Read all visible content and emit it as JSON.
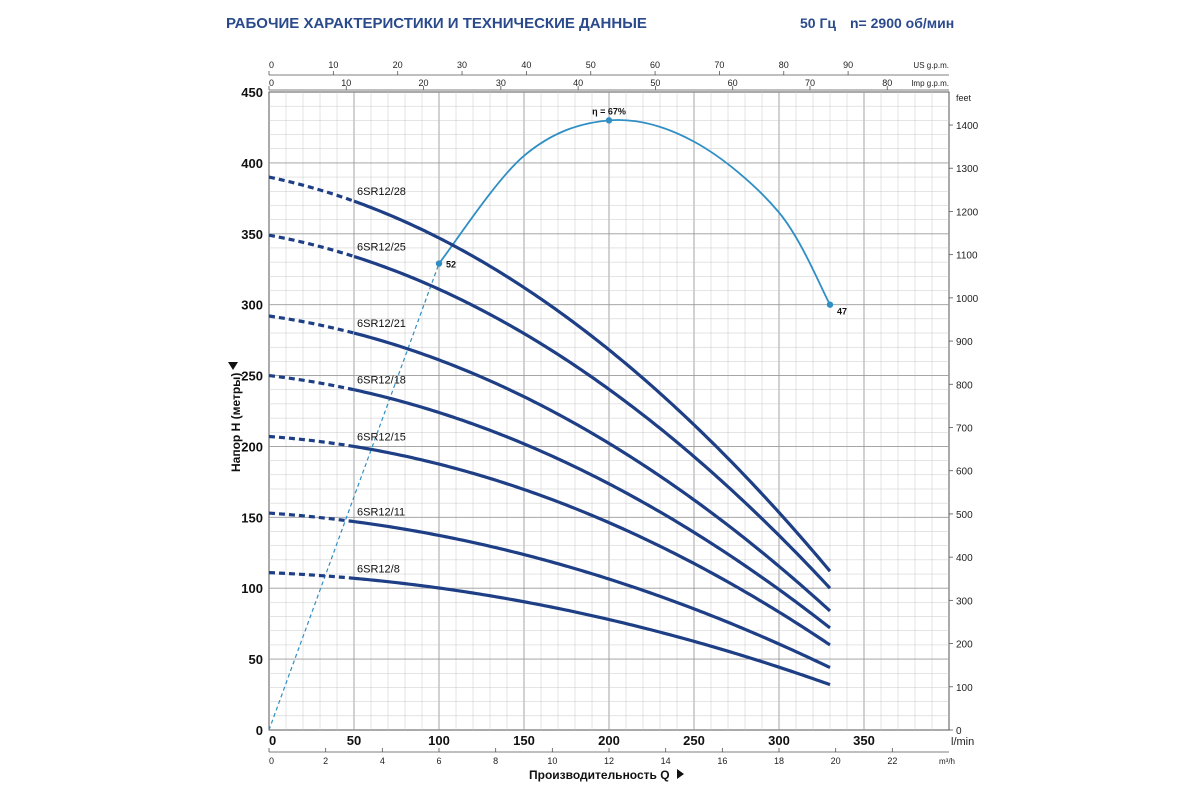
{
  "header": {
    "title": "РАБОЧИЕ ХАРАКТЕРИСТИКИ И ТЕХНИЧЕСКИЕ ДАННЫЕ",
    "frequency": "50 Гц",
    "speed": "n= 2900 об/мин"
  },
  "colors": {
    "pump_curve": "#1e3f86",
    "efficiency_curve": "#2f8fc4",
    "grid": "#c8c8c8",
    "header": "#2a4a8c"
  },
  "chart_data": {
    "type": "line",
    "xlabel": "Производительность Q",
    "ylabel": "Напор H (метры)",
    "x_unit": "l/min",
    "xlim": [
      0,
      400
    ],
    "ylim": [
      0,
      450
    ],
    "x_ticks": [
      0,
      50,
      100,
      150,
      200,
      250,
      300,
      350
    ],
    "y_ticks": [
      0,
      50,
      100,
      150,
      200,
      250,
      300,
      350,
      400,
      450
    ],
    "secondary_axes": {
      "us_gpm": {
        "label": "US g.p.m.",
        "ticks": [
          0,
          10,
          20,
          30,
          40,
          50,
          60,
          70,
          80,
          90
        ],
        "lpm_per_unit": 3.785
      },
      "imp_gpm": {
        "label": "Imp g.p.m.",
        "ticks": [
          0,
          10,
          20,
          30,
          40,
          50,
          60,
          70,
          80
        ],
        "lpm_per_unit": 4.546
      },
      "m3h": {
        "label": "m³/h",
        "ticks": [
          0,
          2,
          4,
          6,
          8,
          10,
          12,
          14,
          16,
          18,
          20,
          22
        ],
        "lpm_per_unit": 16.667
      },
      "feet": {
        "label": "feet",
        "ticks": [
          0,
          100,
          200,
          300,
          400,
          500,
          600,
          700,
          800,
          900,
          1000,
          1100,
          1200,
          1300,
          1400
        ],
        "m_per_unit": 0.3048
      }
    },
    "series": [
      {
        "name": "6SR12/28",
        "h0": 390,
        "h_at_50": 373,
        "h_end": 112,
        "q_end": 330
      },
      {
        "name": "6SR12/25",
        "h0": 349,
        "h_at_50": 334,
        "h_end": 100,
        "q_end": 330
      },
      {
        "name": "6SR12/21",
        "h0": 292,
        "h_at_50": 280,
        "h_end": 84,
        "q_end": 330
      },
      {
        "name": "6SR12/18",
        "h0": 250,
        "h_at_50": 240,
        "h_end": 72,
        "q_end": 330
      },
      {
        "name": "6SR12/15",
        "h0": 207,
        "h_at_50": 200,
        "h_end": 60,
        "q_end": 330
      },
      {
        "name": "6SR12/11",
        "h0": 153,
        "h_at_50": 147,
        "h_end": 44,
        "q_end": 330
      },
      {
        "name": "6SR12/8",
        "h0": 111,
        "h_at_50": 107,
        "h_end": 32,
        "q_end": 330
      }
    ],
    "efficiency_curve": {
      "points": [
        [
          0,
          0
        ],
        [
          100,
          329
        ],
        [
          150,
          405
        ],
        [
          200,
          430
        ],
        [
          250,
          415
        ],
        [
          300,
          365
        ],
        [
          330,
          300
        ]
      ],
      "markers": [
        {
          "x": 100,
          "y": 329,
          "label": "52"
        },
        {
          "x": 200,
          "y": 430,
          "label": "η = 67%"
        },
        {
          "x": 330,
          "y": 300,
          "label": "47"
        }
      ]
    }
  }
}
